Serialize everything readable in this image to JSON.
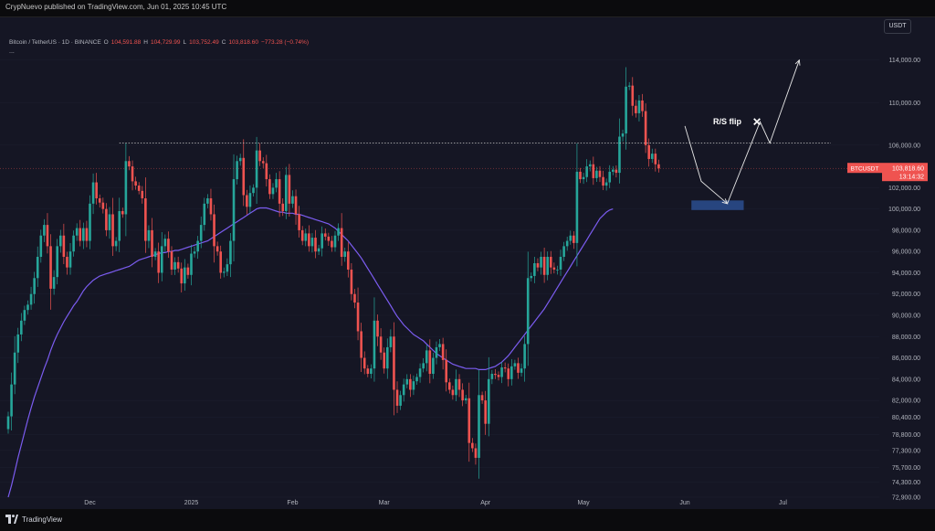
{
  "header": {
    "published_text": "CrypNuevo published on TradingView.com, Jun 01, 2025 10:45 UTC"
  },
  "legend": {
    "symbol_text": "Bitcoin / TetherUS · 1D · BINANCE",
    "open_label": "O",
    "open": "104,591.88",
    "high_label": "H",
    "high": "104,729.99",
    "low_label": "L",
    "low": "103,752.49",
    "close_label": "C",
    "close": "103,818.60",
    "change": "−773.28 (−0.74%)",
    "more": "..."
  },
  "currency_button": "USDT",
  "footer": {
    "brand": "TradingView"
  },
  "colors": {
    "background": "#151624",
    "up": "#26a69a",
    "down": "#ef5350",
    "ma": "#7b5cf0",
    "zone": "#2a4d8f"
  },
  "chart_data": {
    "type": "candlestick",
    "symbol": "BTCUSDT",
    "interval": "1D",
    "ylim": [
      72900,
      117500
    ],
    "y_ticks": [
      {
        "v": 114000,
        "label": "114,000.00"
      },
      {
        "v": 110000,
        "label": "110,000.00"
      },
      {
        "v": 106000,
        "label": "106,000.00"
      },
      {
        "v": 102000,
        "label": "102,000.00"
      },
      {
        "v": 100000,
        "label": "100,000.00"
      },
      {
        "v": 98000,
        "label": "98,000.00"
      },
      {
        "v": 96000,
        "label": "96,000.00"
      },
      {
        "v": 94000,
        "label": "94,000.00"
      },
      {
        "v": 92000,
        "label": "92,000.00"
      },
      {
        "v": 90000,
        "label": "90,000.00"
      },
      {
        "v": 88000,
        "label": "88,000.00"
      },
      {
        "v": 86000,
        "label": "86,000.00"
      },
      {
        "v": 84000,
        "label": "84,000.00"
      },
      {
        "v": 82000,
        "label": "82,000.00"
      },
      {
        "v": 80400,
        "label": "80,400.00"
      },
      {
        "v": 78800,
        "label": "78,800.00"
      },
      {
        "v": 77300,
        "label": "77,300.00"
      },
      {
        "v": 75700,
        "label": "75,700.00"
      },
      {
        "v": 74300,
        "label": "74,300.00"
      },
      {
        "v": 72900,
        "label": "72,900.00"
      }
    ],
    "x_ticks": [
      {
        "i": 25,
        "label": "Dec"
      },
      {
        "i": 56,
        "label": "2025"
      },
      {
        "i": 87,
        "label": "Feb"
      },
      {
        "i": 115,
        "label": "Mar"
      },
      {
        "i": 146,
        "label": "Apr"
      },
      {
        "i": 176,
        "label": "May"
      },
      {
        "i": 207,
        "label": "Jun"
      },
      {
        "i": 237,
        "label": "Jul"
      }
    ],
    "price_label": {
      "symbol": "BTCUSDT",
      "price": "103,818.60",
      "countdown": "13:14:32",
      "value": 103818.6
    },
    "resistance_level": 106200,
    "support_zone": {
      "from_i": 209,
      "to_i": 225,
      "top": 100800,
      "bottom": 99900
    },
    "annotation": {
      "text": "R/S flip",
      "i": 209,
      "v": 108200,
      "mark": "✕"
    },
    "projection_path": [
      [
        207,
        107800
      ],
      [
        212,
        102600
      ],
      [
        220,
        100500
      ],
      [
        230,
        108200
      ],
      [
        233,
        106200
      ],
      [
        242,
        114000
      ]
    ],
    "closes": [
      80500,
      83500,
      86500,
      88200,
      89500,
      90500,
      91000,
      92000,
      93500,
      95500,
      97500,
      98500,
      96500,
      92500,
      93600,
      96500,
      97500,
      95500,
      94500,
      96000,
      97500,
      98200,
      97000,
      98200,
      97000,
      100500,
      102500,
      101000,
      100600,
      100000,
      98000,
      99500,
      96500,
      97000,
      99800,
      99500,
      104500,
      104000,
      102600,
      102200,
      101700,
      101000,
      97000,
      98000,
      95500,
      96000,
      94000,
      96500,
      97200,
      96000,
      94300,
      95000,
      94400,
      93000,
      94500,
      93800,
      95800,
      96000,
      97000,
      98500,
      100500,
      101000,
      99500,
      96500,
      96000,
      94000,
      94100,
      94800,
      97000,
      102800,
      104500,
      104800,
      101300,
      100200,
      101500,
      102000,
      105500,
      104500,
      104300,
      102800,
      101400,
      102000,
      102800,
      100500,
      99800,
      103200,
      100500,
      101200,
      99500,
      98000,
      97000,
      97700,
      96500,
      97300,
      96000,
      96300,
      97700,
      97400,
      97000,
      96400,
      97500,
      98200,
      95500,
      96000,
      94300,
      92000,
      91200,
      88500,
      86000,
      85000,
      84500,
      85000,
      89500,
      88000,
      86500,
      85000,
      87000,
      88000,
      83000,
      81500,
      82500,
      83500,
      84000,
      83000,
      83800,
      84200,
      85000,
      85500,
      86700,
      84500,
      86000,
      87000,
      87300,
      85800,
      83700,
      83000,
      82500,
      84000,
      83000,
      82000,
      82200,
      78000,
      77500,
      76600,
      82500,
      82000,
      79800,
      84000,
      84500,
      84400,
      84200,
      85100,
      85000,
      84000,
      85200,
      85500,
      84600,
      85000,
      87300,
      93500,
      93700,
      94900,
      94500,
      95500,
      93800,
      95500,
      94500,
      94300,
      94300,
      95500,
      96500,
      97000,
      97500,
      96800,
      103500,
      102800,
      103000,
      104000,
      104200,
      102900,
      103600,
      103000,
      102200,
      102500,
      103500,
      103700,
      103400,
      106800,
      107100,
      111500,
      111600,
      109700,
      109000,
      110200,
      109200,
      106000,
      104700,
      105200,
      104200,
      103818.6
    ],
    "ma_values": [
      72900,
      74000,
      75300,
      76600,
      77800,
      79000,
      80200,
      81300,
      82300,
      83200,
      84100,
      85000,
      85800,
      86700,
      87500,
      88200,
      88800,
      89400,
      89900,
      90400,
      90900,
      91300,
      91800,
      92300,
      92700,
      93000,
      93300,
      93500,
      93700,
      93800,
      93900,
      94000,
      94100,
      94200,
      94300,
      94400,
      94500,
      94600,
      94800,
      95000,
      95200,
      95300,
      95400,
      95500,
      95600,
      95700,
      95800,
      95900,
      95900,
      96000,
      96000,
      96100,
      96100,
      96200,
      96300,
      96400,
      96500,
      96600,
      96700,
      96800,
      96900,
      97000,
      97200,
      97400,
      97600,
      97800,
      98000,
      98200,
      98400,
      98600,
      98800,
      99000,
      99200,
      99400,
      99600,
      99800,
      100000,
      100100,
      100100,
      100100,
      100000,
      99900,
      99800,
      99700,
      99700,
      99600,
      99600,
      99600,
      99500,
      99500,
      99400,
      99300,
      99200,
      99100,
      99000,
      98900,
      98800,
      98700,
      98600,
      98400,
      98200,
      97900,
      97600,
      97300,
      97000,
      96600,
      96200,
      95800,
      95400,
      94900,
      94400,
      93900,
      93400,
      92900,
      92400,
      91900,
      91400,
      90900,
      90400,
      89900,
      89500,
      89100,
      88800,
      88500,
      88200,
      88000,
      87800,
      87600,
      87300,
      87000,
      86700,
      86400,
      86200,
      86000,
      85800,
      85600,
      85400,
      85300,
      85200,
      85100,
      85000,
      85000,
      85000,
      85000,
      84900,
      84900,
      84900,
      85000,
      85100,
      85200,
      85400,
      85600,
      85900,
      86200,
      86600,
      87000,
      87400,
      87800,
      88200,
      88600,
      89000,
      89400,
      89800,
      90200,
      90600,
      91100,
      91600,
      92100,
      92600,
      93100,
      93600,
      94100,
      94600,
      95100,
      95600,
      96100,
      96600,
      97100,
      97600,
      98100,
      98600,
      99100,
      99400,
      99700,
      99900,
      100000
    ]
  }
}
